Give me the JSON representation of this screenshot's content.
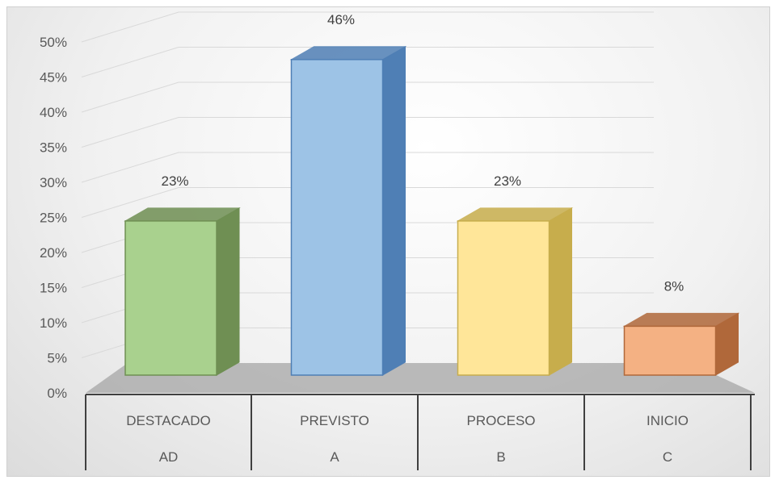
{
  "chart_data": {
    "type": "bar",
    "title": "",
    "xlabel": "",
    "ylabel": "",
    "ylim": [
      0,
      50
    ],
    "y_ticks": [
      "0%",
      "5%",
      "10%",
      "15%",
      "20%",
      "25%",
      "30%",
      "35%",
      "40%",
      "45%",
      "50%"
    ],
    "categories": [
      {
        "label": "DESTACADO",
        "code": "AD"
      },
      {
        "label": "PREVISTO",
        "code": "A"
      },
      {
        "label": "PROCESO",
        "code": "B"
      },
      {
        "label": "INICIO",
        "code": "C"
      }
    ],
    "values": [
      23,
      46,
      23,
      8
    ],
    "data_labels": [
      "23%",
      "46%",
      "23%",
      "8%"
    ],
    "colors": [
      "#a9d18e",
      "#9dc3e6",
      "#ffe699",
      "#f4b183"
    ],
    "side_colors": [
      "#6f8f53",
      "#4f7fb5",
      "#c7ad4c",
      "#b0683a"
    ],
    "grid": true,
    "style": "3d-column"
  }
}
